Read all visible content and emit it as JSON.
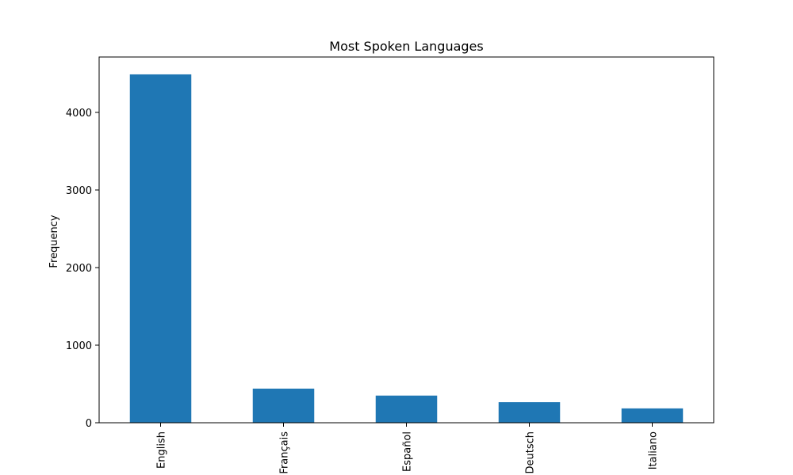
{
  "chart_data": {
    "type": "bar",
    "title": "Most Spoken Languages",
    "xlabel": "",
    "ylabel": "Frequency",
    "categories": [
      "English",
      "Français",
      "Español",
      "Deutsch",
      "Italiano"
    ],
    "values": [
      4490,
      440,
      350,
      265,
      185
    ],
    "ylim": [
      0,
      4714
    ],
    "yticks": [
      0,
      1000,
      2000,
      3000,
      4000
    ],
    "ytick_labels": [
      "0",
      "1000",
      "2000",
      "3000",
      "4000"
    ],
    "bar_color": "#1f77b4",
    "grid": false,
    "legend": false
  }
}
